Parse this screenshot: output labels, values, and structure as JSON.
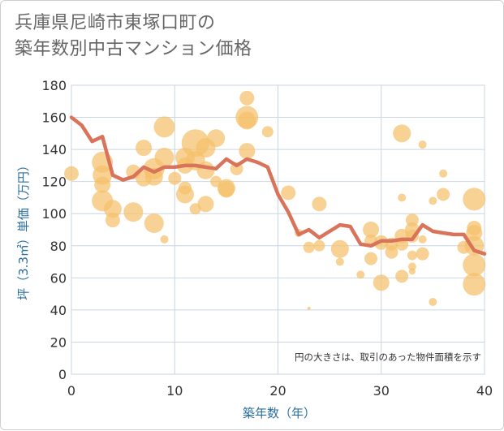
{
  "chart_data": {
    "type": "scatter",
    "title": [
      "兵庫県尼崎市東塚口町の",
      "築年数別中古マンション価格"
    ],
    "xlabel": "築年数（年）",
    "ylabel": "坪（3.3㎡）単価（万円）",
    "xlim": [
      0,
      40
    ],
    "ylim": [
      0,
      180
    ],
    "xticks": [
      "0",
      "10",
      "20",
      "30",
      "40"
    ],
    "yticks": [
      "0",
      "20",
      "40",
      "60",
      "80",
      "100",
      "120",
      "140",
      "160",
      "180"
    ],
    "note": "円の大きさは、取引のあった物件面積を示す",
    "grid": true,
    "colors": {
      "bubble": "#f5c06b",
      "line": "#d9735a",
      "grid": "#c9d6e2",
      "axis_text": "#2b6f9e"
    },
    "series": [
      {
        "type": "bubble",
        "points": [
          {
            "x": 0,
            "y": 125,
            "s": 9
          },
          {
            "x": 3,
            "y": 132,
            "s": 13
          },
          {
            "x": 3,
            "y": 124,
            "s": 12
          },
          {
            "x": 3,
            "y": 118,
            "s": 10
          },
          {
            "x": 3,
            "y": 108,
            "s": 13
          },
          {
            "x": 4,
            "y": 103,
            "s": 11
          },
          {
            "x": 4,
            "y": 96,
            "s": 9
          },
          {
            "x": 6,
            "y": 126,
            "s": 9
          },
          {
            "x": 6,
            "y": 101,
            "s": 12
          },
          {
            "x": 7,
            "y": 141,
            "s": 10
          },
          {
            "x": 7,
            "y": 122,
            "s": 10
          },
          {
            "x": 8,
            "y": 128,
            "s": 13
          },
          {
            "x": 8,
            "y": 123,
            "s": 11
          },
          {
            "x": 8,
            "y": 94,
            "s": 12
          },
          {
            "x": 9,
            "y": 154,
            "s": 13
          },
          {
            "x": 9,
            "y": 135,
            "s": 12
          },
          {
            "x": 9,
            "y": 84,
            "s": 5
          },
          {
            "x": 10,
            "y": 122,
            "s": 8
          },
          {
            "x": 11,
            "y": 135,
            "s": 12
          },
          {
            "x": 11,
            "y": 130,
            "s": 10
          },
          {
            "x": 11,
            "y": 116,
            "s": 8
          },
          {
            "x": 11,
            "y": 112,
            "s": 11
          },
          {
            "x": 12,
            "y": 144,
            "s": 17
          },
          {
            "x": 12,
            "y": 133,
            "s": 12
          },
          {
            "x": 12,
            "y": 103,
            "s": 7
          },
          {
            "x": 13,
            "y": 141,
            "s": 12
          },
          {
            "x": 13,
            "y": 127,
            "s": 11
          },
          {
            "x": 13,
            "y": 106,
            "s": 10
          },
          {
            "x": 14,
            "y": 147,
            "s": 11
          },
          {
            "x": 14,
            "y": 120,
            "s": 7
          },
          {
            "x": 15,
            "y": 116,
            "s": 11
          },
          {
            "x": 15,
            "y": 115,
            "s": 10
          },
          {
            "x": 16,
            "y": 128,
            "s": 8
          },
          {
            "x": 17,
            "y": 172,
            "s": 9
          },
          {
            "x": 17,
            "y": 160,
            "s": 14
          },
          {
            "x": 17,
            "y": 158,
            "s": 11
          },
          {
            "x": 17,
            "y": 139,
            "s": 10
          },
          {
            "x": 19,
            "y": 151,
            "s": 7
          },
          {
            "x": 21,
            "y": 113,
            "s": 9
          },
          {
            "x": 22,
            "y": 88,
            "s": 5
          },
          {
            "x": 23,
            "y": 79,
            "s": 7
          },
          {
            "x": 23,
            "y": 41,
            "s": 2
          },
          {
            "x": 24,
            "y": 106,
            "s": 9
          },
          {
            "x": 24,
            "y": 80,
            "s": 7
          },
          {
            "x": 26,
            "y": 78,
            "s": 11
          },
          {
            "x": 26,
            "y": 70,
            "s": 5
          },
          {
            "x": 28,
            "y": 62,
            "s": 5
          },
          {
            "x": 29,
            "y": 90,
            "s": 10
          },
          {
            "x": 29,
            "y": 83,
            "s": 8
          },
          {
            "x": 29,
            "y": 72,
            "s": 8
          },
          {
            "x": 30,
            "y": 82,
            "s": 9
          },
          {
            "x": 30,
            "y": 57,
            "s": 10
          },
          {
            "x": 31,
            "y": 81,
            "s": 8
          },
          {
            "x": 31,
            "y": 76,
            "s": 8
          },
          {
            "x": 32,
            "y": 150,
            "s": 11
          },
          {
            "x": 32,
            "y": 110,
            "s": 5
          },
          {
            "x": 32,
            "y": 86,
            "s": 9
          },
          {
            "x": 32,
            "y": 81,
            "s": 8
          },
          {
            "x": 32,
            "y": 61,
            "s": 8
          },
          {
            "x": 33,
            "y": 96,
            "s": 8
          },
          {
            "x": 33,
            "y": 90,
            "s": 9
          },
          {
            "x": 33,
            "y": 86,
            "s": 8
          },
          {
            "x": 33,
            "y": 74,
            "s": 6
          },
          {
            "x": 33,
            "y": 67,
            "s": 5
          },
          {
            "x": 33,
            "y": 64,
            "s": 4
          },
          {
            "x": 34,
            "y": 143,
            "s": 5
          },
          {
            "x": 34,
            "y": 84,
            "s": 5
          },
          {
            "x": 34,
            "y": 75,
            "s": 8
          },
          {
            "x": 35,
            "y": 108,
            "s": 5
          },
          {
            "x": 35,
            "y": 45,
            "s": 5
          },
          {
            "x": 36,
            "y": 125,
            "s": 5
          },
          {
            "x": 36,
            "y": 112,
            "s": 8
          },
          {
            "x": 38,
            "y": 79,
            "s": 8
          },
          {
            "x": 39,
            "y": 109,
            "s": 14
          },
          {
            "x": 39,
            "y": 91,
            "s": 9
          },
          {
            "x": 39,
            "y": 88,
            "s": 10
          },
          {
            "x": 39,
            "y": 80,
            "s": 12
          },
          {
            "x": 39,
            "y": 68,
            "s": 14
          },
          {
            "x": 39,
            "y": 56,
            "s": 14
          }
        ]
      },
      {
        "type": "line",
        "x": [
          0,
          1,
          2,
          3,
          4,
          5,
          6,
          7,
          8,
          9,
          10,
          11,
          12,
          13,
          14,
          15,
          16,
          17,
          18,
          19,
          20,
          21,
          22,
          23,
          24,
          25,
          26,
          27,
          28,
          29,
          30,
          31,
          32,
          33,
          34,
          35,
          36,
          37,
          38,
          39,
          40
        ],
        "y": [
          160,
          155,
          145,
          148,
          124,
          121,
          123,
          129,
          126,
          129,
          129,
          130,
          130,
          129,
          128,
          134,
          130,
          134,
          132,
          129,
          112,
          101,
          87,
          90,
          85,
          89,
          93,
          92,
          81,
          80,
          83,
          83,
          84,
          84,
          93,
          89,
          88,
          87,
          87,
          77,
          75
        ]
      }
    ]
  }
}
